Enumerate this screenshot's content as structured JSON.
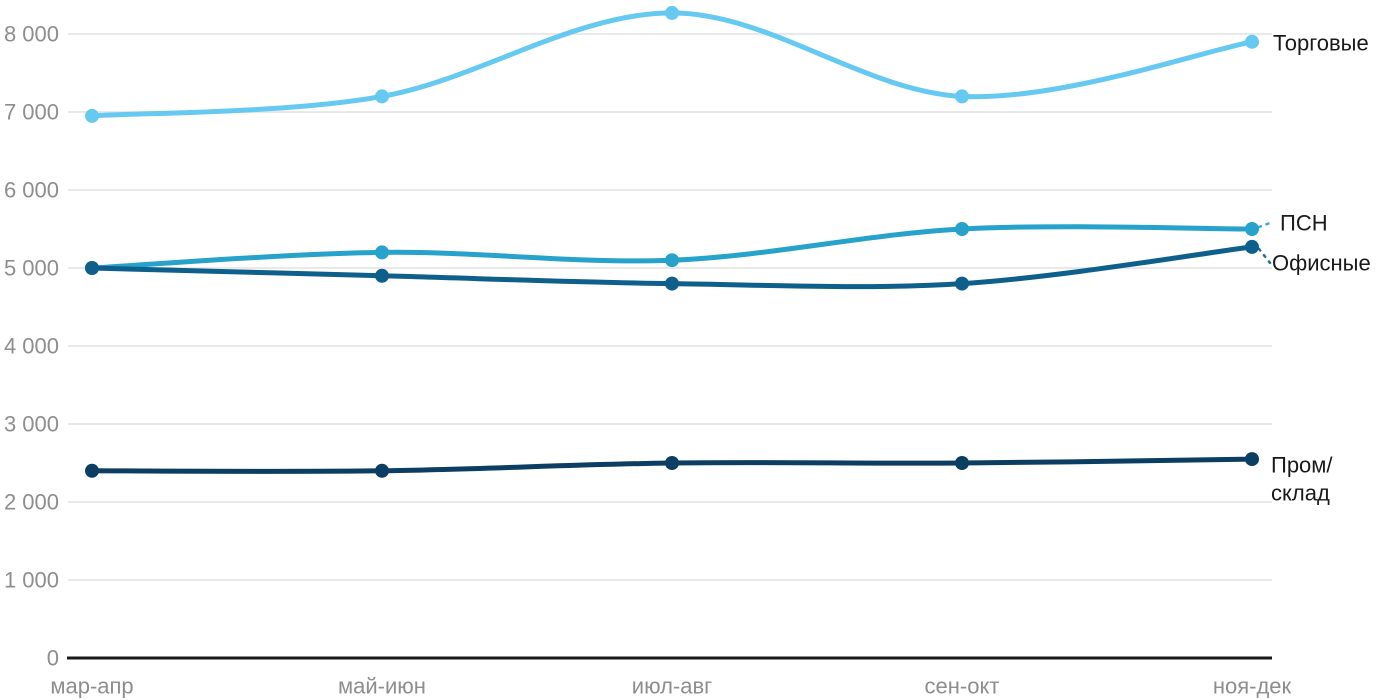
{
  "chart_data": {
    "type": "line",
    "categories": [
      "мар-апр",
      "май-июн",
      "июл-авг",
      "сен-окт",
      "ноя-дек"
    ],
    "series": [
      {
        "name": "Торговые",
        "color": "#66C9F1",
        "values": [
          6950,
          7200,
          8270,
          7200,
          7900
        ],
        "label_lines": [
          "Торговые"
        ]
      },
      {
        "name": "ПСН",
        "color": "#27A2CB",
        "values": [
          5000,
          5200,
          5100,
          5500,
          5500
        ],
        "label_lines": [
          "ПСН"
        ]
      },
      {
        "name": "Офисные",
        "color": "#0F5F8C",
        "values": [
          5000,
          4900,
          4800,
          4800,
          5270
        ],
        "label_lines": [
          "Офисные"
        ]
      },
      {
        "name": "Пром/склад",
        "color": "#0C3E63",
        "values": [
          2400,
          2400,
          2500,
          2500,
          2550
        ],
        "label_lines": [
          "Пром/",
          "склад"
        ]
      }
    ],
    "y_ticks": [
      {
        "value": 0,
        "label": "0"
      },
      {
        "value": 1000,
        "label": "1 000"
      },
      {
        "value": 2000,
        "label": "2 000"
      },
      {
        "value": 3000,
        "label": "3 000"
      },
      {
        "value": 4000,
        "label": "4 000"
      },
      {
        "value": 5000,
        "label": "5 000"
      },
      {
        "value": 6000,
        "label": "6 000"
      },
      {
        "value": 7000,
        "label": "7 000"
      },
      {
        "value": 8000,
        "label": "8 000"
      }
    ],
    "title": "",
    "xlabel": "",
    "ylabel": "",
    "ylim": [
      0,
      8500
    ],
    "grid": true,
    "legend_position": "right-of-last-point",
    "curve": "smooth"
  },
  "style": {
    "background": "#FFFFFF",
    "grid_color": "#E9E9E9",
    "axis_line_color": "#1A1A1A",
    "tick_label_color": "#8E8E8E",
    "series_label_color": "#1A1A1A"
  }
}
